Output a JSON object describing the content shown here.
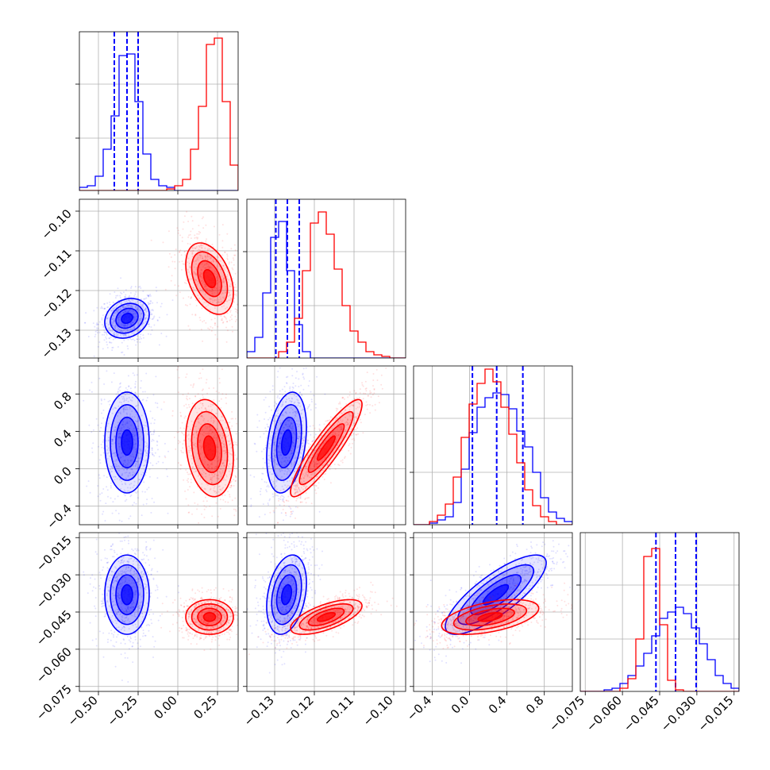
{
  "colors": {
    "series_a": "#0000ff",
    "series_b": "#ff0000",
    "grid": "#b0b0b0",
    "frame": "#000000"
  },
  "chart_data": {
    "type": "corner",
    "parameters": 4,
    "grid": true,
    "axes": [
      {
        "range": [
          -0.62,
          0.38
        ],
        "ticks": [
          -0.5,
          -0.25,
          0.0,
          0.25
        ],
        "tick_labels": [
          "−0.50",
          "−0.25",
          "0.00",
          "0.25"
        ]
      },
      {
        "range": [
          -0.137,
          -0.097
        ],
        "ticks": [
          -0.13,
          -0.12,
          -0.11,
          -0.1
        ],
        "tick_labels": [
          "−0.13",
          "−0.12",
          "−0.11",
          "−0.10"
        ]
      },
      {
        "range": [
          -0.6,
          1.1
        ],
        "ticks": [
          -0.4,
          0.0,
          0.4,
          0.8
        ],
        "tick_labels": [
          "−0.4",
          "0.0",
          "0.4",
          "0.8"
        ]
      },
      {
        "range": [
          -0.077,
          -0.013
        ],
        "ticks": [
          -0.075,
          -0.06,
          -0.045,
          -0.03,
          -0.015
        ],
        "tick_labels": [
          "−0.075",
          "−0.060",
          "−0.045",
          "−0.030",
          "−0.015"
        ]
      }
    ],
    "series": [
      {
        "color": "#0000ff",
        "center": [
          -0.32,
          -0.127,
          0.28,
          -0.038
        ],
        "sigma": [
          0.07,
          0.0025,
          0.27,
          0.008
        ],
        "quantiles": [
          [
            -0.4,
            -0.32,
            -0.25
          ],
          [
            -0.1297,
            -0.1268,
            -0.1238
          ],
          [
            0.03,
            0.29,
            0.57
          ],
          [
            -0.0465,
            -0.0386,
            -0.0303
          ]
        ],
        "histograms": [
          {
            "edges_range": [
              -0.62,
              0.38
            ],
            "counts": [
              0.02,
              0.03,
              0.09,
              0.26,
              0.47,
              0.85,
              0.86,
              0.56,
              0.23,
              0.07,
              0.03,
              0.02,
              0.0,
              0.0,
              0.0,
              0.0,
              0.0,
              0.0,
              0.0,
              0.0
            ]
          },
          {
            "edges_range": [
              -0.137,
              -0.097
            ],
            "counts": [
              0.04,
              0.13,
              0.41,
              0.76,
              0.86,
              0.55,
              0.21,
              0.04,
              0.0,
              0.0,
              0.0,
              0.0,
              0.0,
              0.0,
              0.0,
              0.0,
              0.0,
              0.0,
              0.0,
              0.0
            ]
          },
          {
            "edges_range": [
              -0.6,
              1.1
            ],
            "counts": [
              0.0,
              0.0,
              0.01,
              0.03,
              0.05,
              0.14,
              0.35,
              0.58,
              0.74,
              0.8,
              0.83,
              0.82,
              0.73,
              0.59,
              0.49,
              0.33,
              0.17,
              0.08,
              0.04,
              0.02
            ]
          },
          {
            "edges_range": [
              -0.077,
              -0.013
            ],
            "counts": [
              0.0,
              0.0,
              0.0,
              0.01,
              0.02,
              0.05,
              0.1,
              0.16,
              0.24,
              0.35,
              0.46,
              0.5,
              0.53,
              0.49,
              0.4,
              0.3,
              0.2,
              0.1,
              0.05,
              0.02
            ]
          }
        ],
        "correlations": {
          "0-1": 0.2,
          "0-2": 0.0,
          "0-3": 0.0,
          "1-2": 0.3,
          "1-3": 0.3,
          "2-3": 0.8
        }
      },
      {
        "color": "#ff0000",
        "center": [
          0.2,
          -0.117,
          0.22,
          -0.047
        ],
        "sigma": [
          0.075,
          0.0045,
          0.26,
          0.0035
        ],
        "histograms": [
          {
            "edges_range": [
              -0.62,
              0.38
            ],
            "counts": [
              0.0,
              0.0,
              0.0,
              0.0,
              0.0,
              0.0,
              0.0,
              0.0,
              0.0,
              0.0,
              0.0,
              0.01,
              0.03,
              0.07,
              0.26,
              0.53,
              0.92,
              0.96,
              0.56,
              0.16
            ]
          },
          {
            "edges_range": [
              -0.137,
              -0.097
            ],
            "counts": [
              0.0,
              0.0,
              0.0,
              0.0,
              0.04,
              0.1,
              0.25,
              0.55,
              0.85,
              0.92,
              0.78,
              0.56,
              0.33,
              0.17,
              0.1,
              0.04,
              0.02,
              0.01,
              0.0,
              0.0
            ]
          },
          {
            "edges_range": [
              -0.6,
              1.1
            ],
            "counts": [
              0.0,
              0.0,
              0.02,
              0.06,
              0.13,
              0.3,
              0.55,
              0.76,
              0.89,
              0.98,
              0.9,
              0.74,
              0.57,
              0.39,
              0.22,
              0.12,
              0.05,
              0.02,
              0.0,
              0.0
            ]
          },
          {
            "edges_range": [
              -0.077,
              -0.013
            ],
            "counts": [
              0.0,
              0.0,
              0.0,
              0.0,
              0.0,
              0.02,
              0.08,
              0.33,
              0.85,
              0.9,
              0.42,
              0.07,
              0.01,
              0.0,
              0.0,
              0.0,
              0.0,
              0.0,
              0.0,
              0.0
            ]
          }
        ],
        "correlations": {
          "0-1": -0.4,
          "0-2": -0.2,
          "0-3": 0.0,
          "1-2": 0.9,
          "1-3": 0.65,
          "2-3": 0.5
        }
      }
    ]
  }
}
